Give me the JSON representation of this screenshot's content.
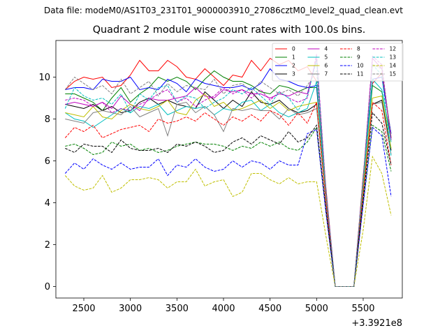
{
  "suptitle": "Data file: modeM0/AS1T03_231T01_9000003910_27086cztM0_level2_quad_clean.evt",
  "chart_data": {
    "type": "line",
    "title": "Quadrant 2 module wise count rates with 100.0s bins.",
    "xlabel": "",
    "ylabel": "",
    "x_offset_label": "+3.3921e8",
    "xlim": [
      2200,
      5920
    ],
    "ylim": [
      -0.55,
      11.75
    ],
    "xticks": [
      2500,
      3000,
      3500,
      4000,
      4500,
      5000,
      5500
    ],
    "yticks": [
      0,
      2,
      4,
      6,
      8,
      10
    ],
    "grid": false,
    "legend_position": "top-right",
    "x": [
      2300,
      2400,
      2500,
      2600,
      2700,
      2800,
      2900,
      3000,
      3100,
      3200,
      3300,
      3400,
      3500,
      3600,
      3700,
      3800,
      3900,
      4000,
      4100,
      4200,
      4300,
      4400,
      4500,
      4600,
      4700,
      4800,
      4900,
      5000,
      5100,
      5200,
      5300,
      5400,
      5500,
      5600,
      5700,
      5800
    ],
    "series": [
      {
        "name": "0",
        "color": "#ff0000",
        "style": "solid",
        "values": [
          9.4,
          9.8,
          10.0,
          9.9,
          10.0,
          9.5,
          9.6,
          10.1,
          10.8,
          10.3,
          10.3,
          10.8,
          10.5,
          10.0,
          9.9,
          10.4,
          10.0,
          9.6,
          10.1,
          10.0,
          10.8,
          10.3,
          10.9,
          10.6,
          10.8,
          10.3,
          10.5,
          9.8,
          4.7,
          0.0,
          0.0,
          0.0,
          5.3,
          9.7,
          10.2,
          7.1
        ]
      },
      {
        "name": "1",
        "color": "#008000",
        "style": "solid",
        "values": [
          9.2,
          9.2,
          9.0,
          8.8,
          8.4,
          9.0,
          9.5,
          8.8,
          9.2,
          9.5,
          10.0,
          9.8,
          10.0,
          9.8,
          9.4,
          9.9,
          10.3,
          10.0,
          9.8,
          9.8,
          9.6,
          9.3,
          9.2,
          9.6,
          9.5,
          9.3,
          9.5,
          9.5,
          4.4,
          0.0,
          0.0,
          0.0,
          5.0,
          9.6,
          9.3,
          7.1
        ]
      },
      {
        "name": "2",
        "color": "#0000ff",
        "style": "solid",
        "values": [
          9.4,
          9.5,
          9.5,
          9.4,
          9.9,
          9.8,
          9.8,
          10.0,
          9.4,
          9.5,
          9.4,
          9.9,
          9.7,
          9.3,
          9.9,
          9.7,
          9.6,
          9.5,
          9.5,
          9.6,
          9.4,
          9.7,
          10.4,
          9.9,
          9.8,
          9.6,
          9.5,
          9.6,
          4.6,
          0.0,
          0.0,
          0.0,
          5.2,
          9.9,
          10.0,
          7.3
        ]
      },
      {
        "name": "3",
        "color": "#000000",
        "style": "solid",
        "values": [
          8.7,
          8.6,
          8.5,
          8.7,
          8.4,
          8.6,
          8.3,
          8.4,
          8.8,
          9.0,
          8.7,
          8.9,
          8.7,
          8.6,
          8.5,
          9.3,
          8.9,
          8.5,
          8.9,
          8.6,
          9.3,
          8.8,
          8.7,
          8.9,
          8.5,
          8.3,
          8.4,
          8.7,
          4.3,
          0.0,
          0.0,
          0.0,
          4.6,
          8.7,
          8.9,
          6.5
        ]
      },
      {
        "name": "4",
        "color": "#bf00bf",
        "style": "solid",
        "values": [
          8.7,
          8.8,
          8.7,
          8.6,
          8.8,
          8.5,
          9.1,
          8.7,
          8.4,
          9.0,
          8.9,
          8.9,
          9.0,
          9.1,
          9.5,
          9.1,
          9.0,
          9.4,
          9.3,
          9.4,
          9.2,
          9.2,
          9.0,
          9.2,
          9.1,
          9.3,
          9.2,
          10.9,
          4.5,
          0.0,
          0.0,
          0.0,
          5.1,
          10.9,
          10.4,
          7.0
        ]
      },
      {
        "name": "5",
        "color": "#00bfbf",
        "style": "solid",
        "values": [
          8.3,
          8.0,
          7.9,
          7.6,
          7.9,
          8.2,
          8.5,
          8.3,
          8.6,
          8.5,
          8.7,
          8.2,
          8.4,
          8.6,
          8.5,
          8.6,
          8.2,
          8.5,
          8.4,
          8.8,
          8.9,
          8.4,
          8.7,
          8.3,
          8.1,
          8.3,
          8.5,
          9.8,
          4.2,
          0.0,
          0.0,
          0.0,
          4.9,
          9.9,
          9.4,
          6.9
        ]
      },
      {
        "name": "6",
        "color": "#bfbf00",
        "style": "solid",
        "values": [
          8.3,
          8.2,
          8.1,
          8.6,
          8.1,
          8.0,
          8.4,
          8.7,
          8.5,
          8.4,
          8.6,
          8.9,
          8.3,
          8.2,
          8.9,
          9.2,
          8.6,
          8.8,
          8.4,
          8.5,
          8.7,
          8.9,
          8.5,
          8.8,
          8.4,
          8.6,
          8.7,
          8.8,
          4.2,
          0.0,
          0.0,
          0.0,
          4.7,
          9.0,
          9.1,
          6.6
        ]
      },
      {
        "name": "7",
        "color": "#808080",
        "style": "solid",
        "values": [
          8.0,
          7.9,
          7.8,
          8.3,
          8.4,
          8.3,
          8.2,
          8.6,
          8.1,
          8.3,
          8.5,
          7.2,
          8.7,
          8.8,
          8.3,
          8.6,
          8.2,
          7.4,
          8.5,
          8.4,
          8.5,
          8.4,
          8.4,
          8.0,
          8.5,
          8.2,
          8.3,
          8.5,
          4.1,
          0.0,
          0.0,
          0.0,
          4.5,
          8.7,
          8.8,
          6.3
        ]
      },
      {
        "name": "8",
        "color": "#ff0000",
        "style": "dashed",
        "values": [
          7.1,
          7.6,
          7.4,
          7.7,
          7.1,
          7.3,
          7.5,
          7.6,
          7.7,
          7.4,
          8.0,
          7.8,
          7.9,
          8.1,
          7.9,
          8.3,
          8.0,
          7.7,
          8.1,
          7.9,
          8.2,
          7.9,
          8.4,
          8.2,
          7.7,
          8.3,
          7.8,
          8.8,
          4.0,
          0.0,
          0.0,
          0.0,
          4.4,
          8.8,
          8.4,
          5.8
        ]
      },
      {
        "name": "9",
        "color": "#008000",
        "style": "dashed",
        "values": [
          6.7,
          6.8,
          6.6,
          6.3,
          6.4,
          6.9,
          6.7,
          6.8,
          6.5,
          6.6,
          6.4,
          6.5,
          6.7,
          6.8,
          6.9,
          6.8,
          6.8,
          6.7,
          6.5,
          6.7,
          6.6,
          6.9,
          6.7,
          6.9,
          6.6,
          6.5,
          6.9,
          7.6,
          3.6,
          0.0,
          0.0,
          0.0,
          4.0,
          7.7,
          7.4,
          5.5
        ]
      },
      {
        "name": "10",
        "color": "#0000ff",
        "style": "dashed",
        "values": [
          5.4,
          5.9,
          5.6,
          6.1,
          5.8,
          5.6,
          5.9,
          5.6,
          5.7,
          5.7,
          6.1,
          5.3,
          5.8,
          5.7,
          6.1,
          5.7,
          5.5,
          5.6,
          6.0,
          5.7,
          6.0,
          5.9,
          5.6,
          6.0,
          5.8,
          5.8,
          7.3,
          7.5,
          3.5,
          0.0,
          0.0,
          0.0,
          3.9,
          7.6,
          7.2,
          4.3
        ]
      },
      {
        "name": "11",
        "color": "#000000",
        "style": "dashed",
        "values": [
          6.6,
          6.4,
          6.8,
          6.7,
          6.7,
          6.4,
          7.0,
          6.6,
          6.5,
          6.5,
          6.6,
          6.4,
          6.8,
          6.7,
          6.9,
          6.7,
          6.4,
          6.5,
          6.9,
          7.1,
          6.8,
          7.2,
          7.0,
          6.8,
          7.4,
          6.9,
          7.1,
          7.7,
          3.7,
          0.0,
          0.0,
          0.0,
          4.2,
          8.3,
          7.8,
          5.8
        ]
      },
      {
        "name": "12",
        "color": "#bf00bf",
        "style": "dashed",
        "values": [
          8.9,
          9.0,
          8.9,
          8.6,
          8.8,
          8.3,
          8.5,
          8.4,
          8.7,
          8.9,
          9.2,
          9.4,
          8.8,
          9.0,
          8.6,
          8.9,
          9.1,
          9.5,
          9.2,
          9.4,
          9.0,
          9.4,
          8.9,
          9.3,
          9.0,
          8.8,
          9.0,
          11.1,
          4.6,
          0.0,
          0.0,
          0.0,
          5.2,
          11.0,
          10.6,
          7.0
        ]
      },
      {
        "name": "13",
        "color": "#00bfbf",
        "style": "dashed",
        "values": [
          8.5,
          9.5,
          9.1,
          8.9,
          9.0,
          8.7,
          9.2,
          8.3,
          9.2,
          8.9,
          9.5,
          9.6,
          8.8,
          9.1,
          9.0,
          8.5,
          8.8,
          9.0,
          9.4,
          9.2,
          9.5,
          9.1,
          8.7,
          9.3,
          9.0,
          8.4,
          9.1,
          10.8,
          4.5,
          0.0,
          0.0,
          0.0,
          5.1,
          10.6,
          10.1,
          6.2
        ]
      },
      {
        "name": "14",
        "color": "#bfbf00",
        "style": "dashed",
        "values": [
          5.3,
          4.8,
          4.6,
          4.7,
          5.3,
          4.5,
          4.7,
          5.1,
          5.1,
          5.2,
          5.1,
          4.7,
          5.0,
          5.0,
          5.6,
          4.8,
          5.0,
          5.1,
          4.3,
          4.5,
          5.4,
          5.4,
          5.1,
          4.9,
          5.2,
          4.9,
          5.0,
          5.0,
          2.4,
          0.0,
          0.0,
          0.0,
          2.7,
          6.2,
          5.4,
          3.4
        ]
      },
      {
        "name": "15",
        "color": "#808080",
        "style": "dashed",
        "values": [
          9.4,
          10.0,
          9.7,
          9.4,
          9.6,
          9.2,
          9.9,
          9.2,
          9.5,
          9.8,
          9.1,
          9.7,
          9.3,
          9.6,
          9.5,
          9.4,
          9.9,
          9.2,
          9.6,
          9.7,
          9.3,
          9.8,
          9.5,
          9.2,
          9.4,
          9.1,
          9.6,
          10.3,
          4.6,
          0.0,
          0.0,
          0.0,
          5.2,
          10.6,
          10.4,
          7.2
        ]
      }
    ]
  }
}
